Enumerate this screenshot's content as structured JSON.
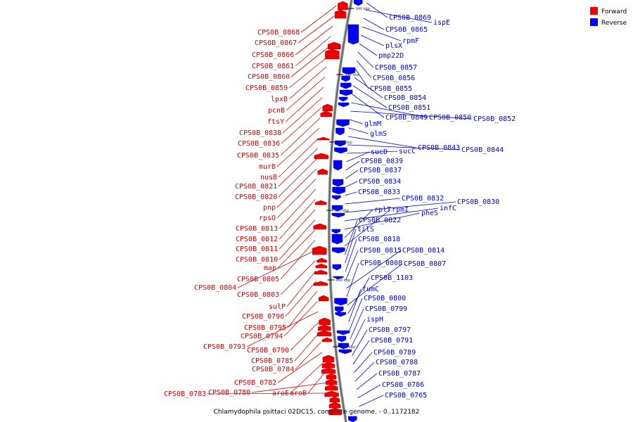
{
  "title": "Chlamydophila psittaci 02DC15, complete genome. - 0..1172182",
  "legend": [
    {
      "label": "Forward",
      "color": "#ee0000"
    },
    {
      "label": "Reverse",
      "color": "#0000ee"
    }
  ],
  "ticks": [
    "940 kbp",
    "920 kbp",
    "900 kbp",
    "880 kbp",
    "860 kbp",
    "840 kbp"
  ],
  "forward_labels": [
    "CPS0B_0868",
    "CPS0B_0867",
    "CPS0B_0866",
    "CPS0B_0861",
    "CPS0B_0860",
    "CPS0B_0859",
    "lpxB",
    "pcnB",
    "ftsY",
    "CPS0B_0838",
    "CPS0B_0836",
    "CPS0B_0835",
    "murB",
    "nusB",
    "CPS0B_0821",
    "CPS0B_0820",
    "pnp",
    "rpsO",
    "CPS0B_0813",
    "CPS0B_0812",
    "CPS0B_0811",
    "CPS0B_0810",
    "map",
    "CPS0B_0805",
    "CPS0B_0804",
    "CPS0B_0803",
    "sulP",
    "CPS0B_0796",
    "CPS0B_0795",
    "CPS0B_0794",
    "CPS0B_0793",
    "CPS0B_0790",
    "CPS0B_0785",
    "CPS0B_0784",
    "CPS0B_0782",
    "aroE",
    "aroB",
    "CPS0B_0780",
    "CPS0B_0783"
  ],
  "reverse_labels": [
    "CPS0B_0869",
    "ispE",
    "CPS0B_0865",
    "rpmF",
    "plsX",
    "pmp22D",
    "CPS0B_0857",
    "CPS0B_0856",
    "CPS0B_0855",
    "CPS0B_0854",
    "CPS0B_0851",
    "CPS0B_0849",
    "CPS0B_0850",
    "CPS0B_0852",
    "glmM",
    "glmS",
    "CPS0B_0843",
    "CPS0B_0844",
    "sucC",
    "sucD",
    "CPS0B_0839",
    "CPS0B_0837",
    "CPS0B_0834",
    "CPS0B_0833",
    "CPS0B_0832",
    "CPS0B_0830",
    "infC",
    "pheS",
    "rplT",
    "rpmI",
    "CPS0B_0822",
    "tilS",
    "CPS0B_0818",
    "CPS0B_0815",
    "CPS0B_0814",
    "CPS0B_0808",
    "CPS0B_0807",
    "CPS0B_1103",
    "fumC",
    "CPS0B_0800",
    "CPS0B_0799",
    "ispH",
    "CPS0B_0797",
    "CPS0B_0791",
    "CPS0B_0789",
    "CPS0B_0788",
    "CPS0B_0787",
    "CPS0B_0786",
    "CPS0B_0765"
  ]
}
